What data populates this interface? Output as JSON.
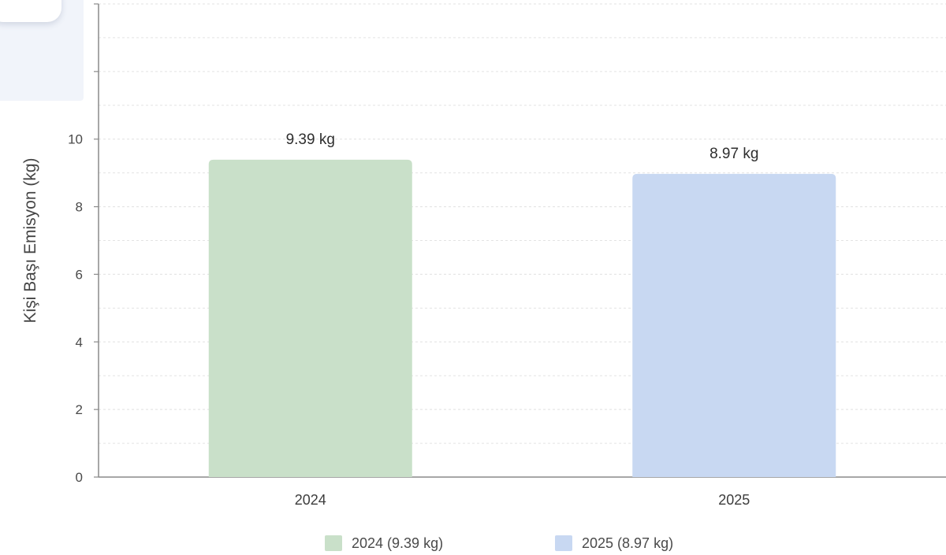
{
  "chart_data": {
    "type": "bar",
    "categories": [
      "2024",
      "2025"
    ],
    "values": [
      9.39,
      8.97
    ],
    "data_labels": [
      "9.39 kg",
      "8.97 kg"
    ],
    "ylabel": "Kişi Başı Emisyon (kg)",
    "xlabel": "",
    "ylim": [
      0,
      14
    ],
    "yticks": [
      0,
      2,
      4,
      6,
      8,
      10
    ],
    "grid": true,
    "legend_position": "bottom",
    "legend": [
      {
        "label": "2024 (9.39 kg)",
        "color": "#c9e0c9"
      },
      {
        "label": "2025 (8.97 kg)",
        "color": "#c8d8f2"
      }
    ],
    "colors": [
      "#c9e0c9",
      "#c8d8f2"
    ]
  }
}
